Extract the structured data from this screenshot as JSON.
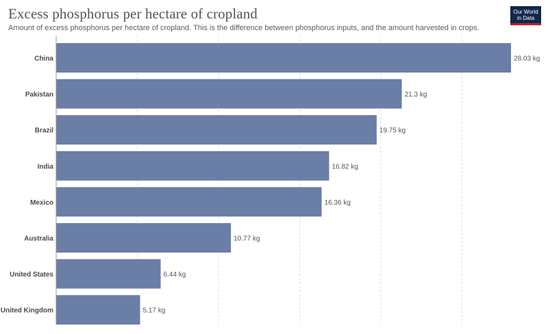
{
  "header": {
    "title": "Excess phosphorus per hectare of cropland",
    "subtitle": "Amount of excess phosphorus per hectare of cropland. This is the difference between phosphorus inputs, and the amount harvested in crops."
  },
  "logo": {
    "line1": "Our World",
    "line2": "in Data"
  },
  "chart_data": {
    "type": "bar",
    "orientation": "horizontal",
    "title": "Excess phosphorus per hectare of cropland",
    "categories": [
      "China",
      "Pakistan",
      "Brazil",
      "India",
      "Mexico",
      "Australia",
      "United States",
      "United Kingdom"
    ],
    "values": [
      28.03,
      21.3,
      19.75,
      16.82,
      16.36,
      10.77,
      6.44,
      5.17
    ],
    "value_labels": [
      "28.03 kg",
      "21.3 kg",
      "19.75 kg",
      "16.82 kg",
      "16.36 kg",
      "10.77 kg",
      "6.44 kg",
      "5.17 kg"
    ],
    "unit": "kg",
    "xlim": [
      0,
      28.03
    ],
    "gridlines": [
      5,
      10,
      15,
      20,
      25
    ],
    "grid": true,
    "bar_color": "#6a7ea6"
  }
}
